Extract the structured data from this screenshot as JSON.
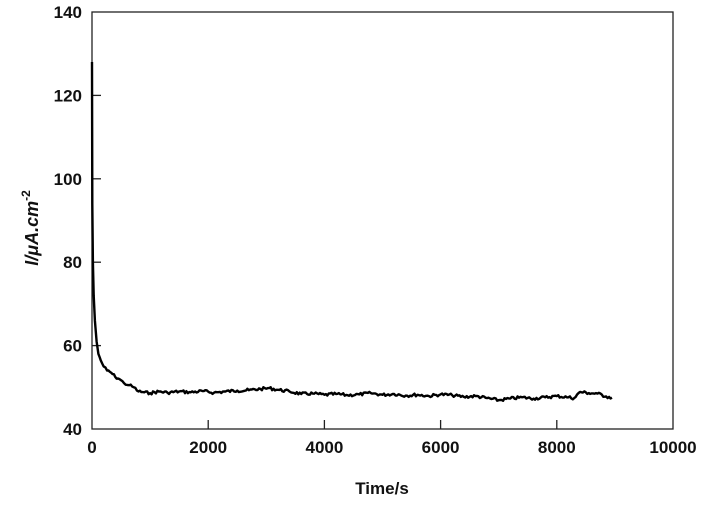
{
  "chart_data": {
    "type": "line",
    "title": "",
    "xlabel": "Time/s",
    "ylabel": "I/μA.cm",
    "ylabel_superscript": "-2",
    "xlim": [
      0,
      10000
    ],
    "ylim": [
      40,
      140
    ],
    "xticks": [
      0,
      2000,
      4000,
      6000,
      8000,
      10000
    ],
    "yticks": [
      40,
      60,
      80,
      100,
      120,
      140
    ],
    "grid": false,
    "legend": "none",
    "line_color": "#000000",
    "series": [
      {
        "x": [
          0,
          5,
          15,
          30,
          50,
          80,
          110,
          150,
          200,
          260,
          330,
          400,
          470,
          550,
          640,
          720,
          800,
          900,
          1000,
          1150,
          1300,
          1500,
          1700,
          1900,
          2100,
          2300,
          2500,
          2700,
          2900,
          3050,
          3200,
          3400,
          3600,
          3800,
          4000,
          4200,
          4400,
          4600,
          4800,
          5000,
          5200,
          5400,
          5600,
          5800,
          6000,
          6200,
          6400,
          6600,
          6800,
          7000,
          7200,
          7400,
          7600,
          7800,
          8000,
          8200,
          8300,
          8400,
          8550,
          8700,
          8850,
          8950
        ],
        "y": [
          128,
          94,
          80,
          72,
          66,
          61,
          58,
          56.5,
          55,
          54,
          53.5,
          52.5,
          52,
          51,
          50.5,
          50,
          49,
          48.8,
          48.6,
          49,
          48.7,
          49,
          48.8,
          49.1,
          48.7,
          49,
          49.2,
          49.3,
          49.6,
          49.8,
          49.4,
          49,
          48.4,
          48.5,
          48.2,
          48.4,
          48.1,
          48.3,
          48.6,
          48.2,
          48.4,
          48,
          48.2,
          47.9,
          48.3,
          48.1,
          47.7,
          47.9,
          47.4,
          46.9,
          47.3,
          47.6,
          47.3,
          47.6,
          47.9,
          47.6,
          47.4,
          48.9,
          48.6,
          48.5,
          47.8,
          47.5
        ]
      }
    ]
  }
}
